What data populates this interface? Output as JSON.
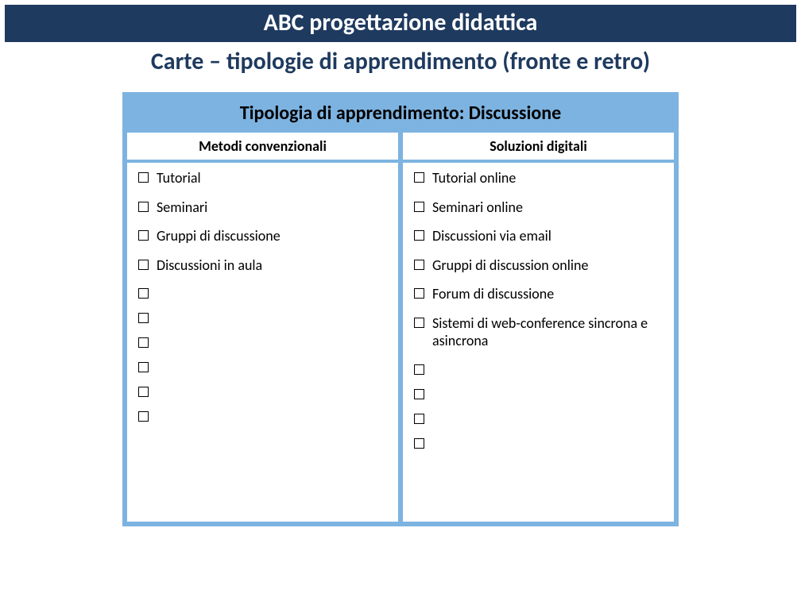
{
  "header": {
    "title": "ABC progettazione didattica",
    "subtitle": "Carte – tipologie di apprendimento (fronte e retro)"
  },
  "card": {
    "title": "Tipologia di apprendimento: Discussione",
    "colors": {
      "header_bar_bg": "#1f3a5f",
      "header_bar_text": "#ffffff",
      "subtitle_text": "#1f3a5f",
      "card_bg": "#7db3e0",
      "col_bg": "#ffffff",
      "text": "#000000"
    },
    "columns": [
      {
        "header": "Metodi convenzionali",
        "items": [
          "Tutorial",
          "Seminari",
          "Gruppi di discussione",
          "Discussioni in aula",
          "",
          "",
          "",
          "",
          "",
          ""
        ]
      },
      {
        "header": "Soluzioni digitali",
        "items": [
          "Tutorial online",
          "Seminari online",
          "Discussioni via email",
          "Gruppi di discussion online",
          "Forum di discussione",
          "Sistemi di web-conference sincrona e asincrona",
          "",
          "",
          "",
          ""
        ]
      }
    ]
  }
}
